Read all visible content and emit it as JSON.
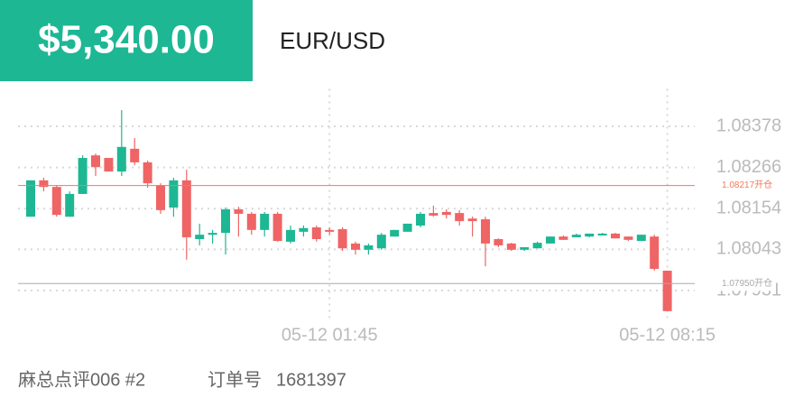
{
  "header": {
    "amount": "$5,340.00",
    "symbol": "EUR/USD"
  },
  "chart_data": {
    "type": "candlestick",
    "categories": [
      null,
      null,
      null,
      null,
      null,
      null,
      null,
      null,
      null,
      null,
      null,
      null,
      null,
      null,
      null,
      null,
      null,
      null,
      null,
      null,
      null,
      null,
      null,
      "05-12 01:45",
      null,
      null,
      null,
      null,
      null,
      null,
      null,
      null,
      null,
      null,
      null,
      null,
      null,
      null,
      null,
      null,
      null,
      null,
      null,
      null,
      null,
      null,
      null,
      null,
      null,
      "05-12 08:15"
    ],
    "open": [
      1.08132,
      1.08231,
      1.08213,
      1.08132,
      1.08194,
      1.08299,
      1.08292,
      1.08255,
      1.08317,
      1.0828,
      1.08218,
      1.08157,
      1.08231,
      1.08071,
      1.08083,
      1.08088,
      1.08152,
      1.0814,
      1.08096,
      1.0814,
      1.08064,
      1.08091,
      1.08103,
      1.08096,
      1.08098,
      1.08059,
      1.08042,
      1.08046,
      1.08078,
      1.08091,
      1.08108,
      1.08142,
      1.08145,
      1.08142,
      1.08127,
      1.08125,
      1.08071,
      1.08059,
      1.08042,
      1.08046,
      1.08059,
      1.08078,
      1.08076,
      1.08078,
      1.08081,
      1.08086,
      1.08078,
      1.08066,
      1.08078,
      1.07985
    ],
    "high": [
      1.08231,
      1.08238,
      1.08218,
      1.08201,
      1.08299,
      1.08304,
      1.08292,
      1.08422,
      1.08346,
      1.08285,
      1.08223,
      1.08238,
      1.0826,
      1.08113,
      1.08096,
      1.08157,
      1.08159,
      1.08145,
      1.08145,
      1.08145,
      1.08108,
      1.08108,
      1.08108,
      1.08103,
      1.08103,
      1.08064,
      1.08059,
      1.08088,
      1.08096,
      1.08113,
      1.08145,
      1.08162,
      1.08152,
      1.0815,
      1.08132,
      1.08132,
      1.08073,
      1.08061,
      1.08049,
      1.08064,
      1.08078,
      1.08081,
      1.08086,
      1.08086,
      1.08088,
      1.08088,
      1.08078,
      1.08083,
      1.08083,
      1.07985
    ],
    "low": [
      1.08132,
      1.08201,
      1.08132,
      1.08132,
      1.08194,
      1.08243,
      1.08255,
      1.08243,
      1.08272,
      1.08211,
      1.0814,
      1.08132,
      1.08015,
      1.08054,
      1.08059,
      1.08029,
      1.08078,
      1.08083,
      1.08078,
      1.08064,
      1.08059,
      1.08078,
      1.08064,
      1.08083,
      1.08039,
      1.08029,
      1.08029,
      1.08042,
      1.08078,
      1.08091,
      1.08103,
      1.08132,
      1.08127,
      1.08108,
      1.08078,
      1.07997,
      1.08049,
      1.08039,
      1.08039,
      1.08046,
      1.08059,
      1.08069,
      1.08076,
      1.08076,
      1.08081,
      1.08073,
      1.08066,
      1.08066,
      1.07985,
      1.07875
    ],
    "close": [
      1.08231,
      1.08213,
      1.08137,
      1.08194,
      1.08292,
      1.08267,
      1.08255,
      1.08322,
      1.0828,
      1.08223,
      1.0815,
      1.08231,
      1.08076,
      1.08083,
      1.08088,
      1.08152,
      1.0814,
      1.08096,
      1.0814,
      1.08066,
      1.08096,
      1.08101,
      1.08071,
      1.08091,
      1.08046,
      1.08042,
      1.08054,
      1.08083,
      1.08096,
      1.08113,
      1.0814,
      1.08135,
      1.08137,
      1.0812,
      1.0812,
      1.08059,
      1.08054,
      1.08042,
      1.08049,
      1.08061,
      1.08078,
      1.08069,
      1.08083,
      1.08086,
      1.08086,
      1.08073,
      1.08069,
      1.08083,
      1.0799,
      1.07875
    ],
    "up_color": "#1db794",
    "down_color": "#ef6464",
    "ylim": [
      1.0785,
      1.0848
    ],
    "yticks": [
      1.08378,
      1.08266,
      1.08154,
      1.08043,
      1.07931
    ],
    "grid": true,
    "ref_lines": [
      {
        "value": 1.08217,
        "label": "1.08217开仓",
        "color": "#f07a5a"
      },
      {
        "value": 1.0795,
        "label": "1.07950开仓",
        "color": "#aaaaaa"
      }
    ]
  },
  "footer": {
    "name": "麻总点评006 #2",
    "order_label": "订单号",
    "order_number": "1681397"
  }
}
